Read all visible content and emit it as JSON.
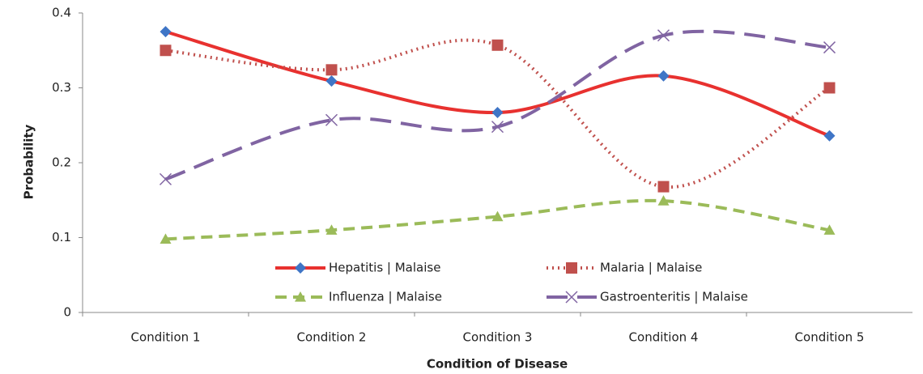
{
  "chart_data": {
    "type": "line",
    "x_label": "Condition of Disease",
    "y_label": "Probability",
    "categories": [
      "Condition 1",
      "Condition 2",
      "Condition 3",
      "Condition 4",
      "Condition 5"
    ],
    "series": [
      {
        "name": "Hepatitis | Malaise",
        "color": "#e8312f",
        "dash": "solid",
        "marker": "diamond",
        "marker_color": "#3f75c6",
        "values": [
          0.375,
          0.309,
          0.267,
          0.316,
          0.236
        ]
      },
      {
        "name": "Malaria | Malaise",
        "color": "#c0504d",
        "dash": "dotted",
        "marker": "square",
        "marker_color": "#c0504d",
        "values": [
          0.35,
          0.324,
          0.357,
          0.168,
          0.3
        ]
      },
      {
        "name": "Influenza | Malaise",
        "color": "#9bbb59",
        "dash": "dashed",
        "marker": "triangle",
        "marker_color": "#9bbb59",
        "values": [
          0.098,
          0.11,
          0.128,
          0.149,
          0.11
        ]
      },
      {
        "name": "Gastroenteritis | Malaise",
        "color": "#8064a2",
        "dash": "longdash",
        "marker": "x",
        "marker_color": "#8064a2",
        "values": [
          0.178,
          0.257,
          0.248,
          0.37,
          0.354
        ]
      }
    ],
    "ylim": [
      0,
      0.4
    ],
    "yticks": [
      0,
      0.1,
      0.2,
      0.3,
      0.4
    ],
    "grid": false,
    "smooth": true,
    "legend": "bottom center"
  }
}
